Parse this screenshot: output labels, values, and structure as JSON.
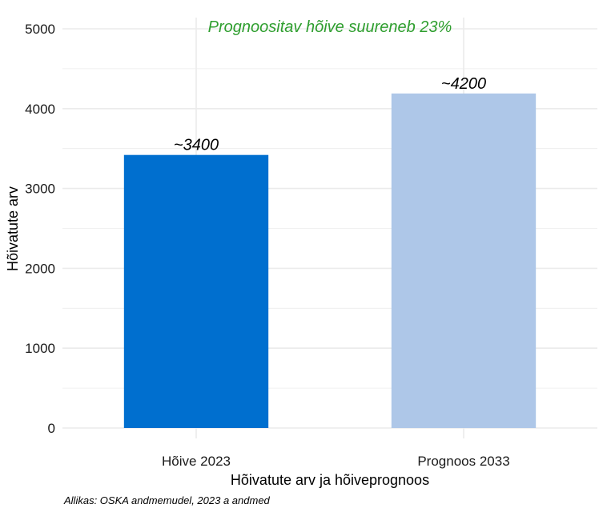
{
  "chart_data": {
    "type": "bar",
    "categories": [
      "Hõive 2023",
      "Prognoos 2033"
    ],
    "values": [
      3420,
      4190
    ],
    "data_labels": [
      "~3400",
      "~4200"
    ],
    "bar_colors": [
      "#006fcf",
      "#aec7e8"
    ],
    "annotation": "Prognoositav hõive suureneb 23%",
    "annotation_color": "#2e9e2e",
    "xlabel": "Hõivatute arv ja hõiveprognoos",
    "ylabel": "Hõivatute arv",
    "ylim": [
      0,
      5000
    ],
    "yticks": [
      0,
      1000,
      2000,
      3000,
      4000,
      5000
    ],
    "caption": "Allikas: OSKA andmemudel, 2023 a andmed",
    "grid": true,
    "gridline_color": "#ebebeb"
  }
}
